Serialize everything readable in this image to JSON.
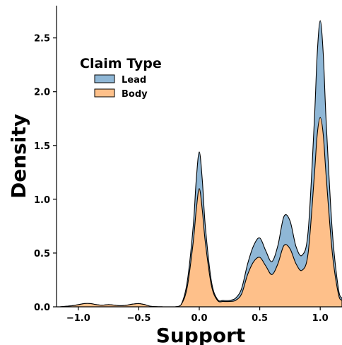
{
  "chart_data": {
    "type": "area",
    "stacked": true,
    "xlabel": "Support",
    "ylabel": "Density",
    "xlim": [
      -1.18,
      1.18
    ],
    "ylim": [
      0,
      2.8
    ],
    "xticks": [
      -1.0,
      -0.5,
      0.0,
      0.5,
      1.0
    ],
    "xtick_labels": [
      "−1.0",
      "−0.5",
      "0.0",
      "0.5",
      "1.0"
    ],
    "yticks": [
      0.0,
      0.5,
      1.0,
      1.5,
      2.0,
      2.5
    ],
    "ytick_labels": [
      "0.0",
      "0.5",
      "1.0",
      "1.5",
      "2.0",
      "2.5"
    ],
    "legend": {
      "title": "Claim Type",
      "placement": "upper-left",
      "entries": [
        {
          "label": "Lead",
          "color": "#8fb7d6"
        },
        {
          "label": "Body",
          "color": "#fec08a"
        }
      ]
    },
    "x": [
      -1.15,
      -1.05,
      -1.0,
      -0.95,
      -0.9,
      -0.85,
      -0.8,
      -0.75,
      -0.7,
      -0.65,
      -0.6,
      -0.55,
      -0.5,
      -0.45,
      -0.4,
      -0.3,
      -0.2,
      -0.15,
      -0.1,
      -0.05,
      -0.025,
      0.0,
      0.025,
      0.05,
      0.1,
      0.15,
      0.2,
      0.25,
      0.3,
      0.35,
      0.4,
      0.45,
      0.5,
      0.55,
      0.6,
      0.65,
      0.7,
      0.75,
      0.8,
      0.85,
      0.9,
      0.95,
      0.975,
      1.0,
      1.025,
      1.05,
      1.1,
      1.15,
      1.18
    ],
    "series": [
      {
        "name": "Body",
        "color": "#fec08a",
        "values": [
          0.0,
          0.01,
          0.02,
          0.03,
          0.03,
          0.02,
          0.015,
          0.02,
          0.015,
          0.01,
          0.015,
          0.025,
          0.03,
          0.02,
          0.005,
          0.0,
          0.0,
          0.02,
          0.18,
          0.6,
          0.9,
          1.1,
          0.9,
          0.6,
          0.2,
          0.06,
          0.05,
          0.05,
          0.06,
          0.12,
          0.3,
          0.42,
          0.46,
          0.38,
          0.3,
          0.4,
          0.57,
          0.54,
          0.4,
          0.34,
          0.5,
          1.2,
          1.6,
          1.76,
          1.6,
          1.2,
          0.5,
          0.12,
          0.06
        ]
      },
      {
        "name": "Lead",
        "color": "#8fb7d6",
        "values": [
          0.0,
          0.0,
          0.0,
          0.0,
          0.0,
          0.0,
          0.0,
          0.0,
          0.0,
          0.0,
          0.0,
          0.0,
          0.0,
          0.0,
          0.0,
          0.0,
          0.0,
          0.0,
          0.05,
          0.15,
          0.28,
          0.34,
          0.28,
          0.15,
          0.04,
          0.01,
          0.01,
          0.01,
          0.02,
          0.05,
          0.1,
          0.15,
          0.18,
          0.14,
          0.12,
          0.17,
          0.27,
          0.26,
          0.16,
          0.14,
          0.2,
          0.5,
          0.75,
          0.9,
          0.75,
          0.5,
          0.2,
          0.05,
          0.02
        ]
      }
    ]
  }
}
